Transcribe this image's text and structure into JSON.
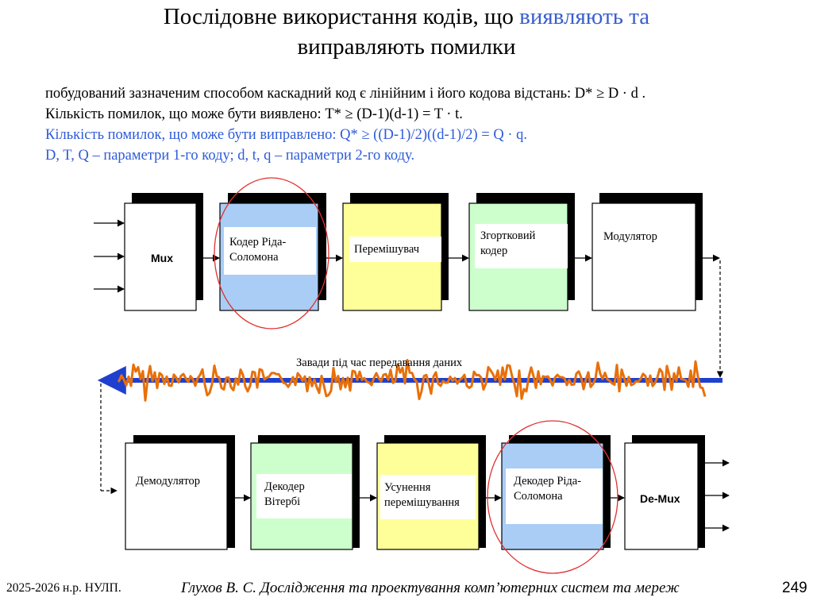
{
  "title": {
    "line1_part1": "Послідовне використання кодів, що ",
    "line1_part2": "виявляють та",
    "line2": "виправляють помилки"
  },
  "body_lines": [
    "побудований зазначеним способом каскадний код є лінійним і його кодова відстань: D* ≥ D · d .",
    "Кількість помилок, що може бути виявлено: T* ≥ (D-1)(d-1) = T · t.",
    "Кількість помилок, що може бути виправлено: Q* ≥ ((D-1)/2)((d-1)/2) = Q · q.",
    "D, T, Q – параметри 1-го коду; d, t, q – параметри 2-го коду."
  ],
  "top_row": {
    "mux": "Mux",
    "rs_coder": "Кодер Ріда-Соломона",
    "interleaver": "Перемішувач",
    "conv_coder": "Згортковий кодер",
    "modulator": "Модулятор"
  },
  "channel_label": "Завади під час передавання даних",
  "bottom_row": {
    "demodulator": "Демодулятор",
    "viterbi": "Декодер Вітербі",
    "deinterleaver": "Усунення перемішування",
    "rs_decoder": "Декодер Ріда-Соломона",
    "demux": "De-Mux"
  },
  "colors": {
    "blue_text": "#2e5bd8",
    "rs_fill": "#a9cdf5",
    "interleaver_fill": "#ffff99",
    "conv_fill": "#ccffcc",
    "channel": "#1f3fcf",
    "noise": "#e8700a",
    "circle": "#e03030"
  },
  "footer": {
    "left": "2025-2026 н.р. НУЛП.",
    "center": "Глухов В. С. Дослідження та проектування комп’ютерних систем та мереж",
    "page": "249"
  }
}
